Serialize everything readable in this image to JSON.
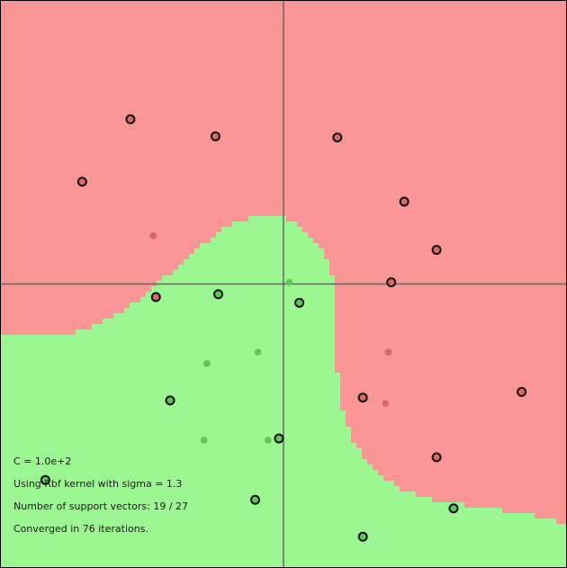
{
  "colors": {
    "positive_region": "#9cf793",
    "negative_region": "#fb9697",
    "positive_point": "#63c45c",
    "negative_point": "#d9676a",
    "support_stroke": "#111111",
    "axis": "#666666",
    "border": "#000000"
  },
  "info": {
    "c_line": "C = 1.0e+2",
    "kernel_line": "Using Rbf kernel with sigma = 1.3",
    "sv_line": "Number of support vectors: 19 / 27",
    "iter_line": "Converged in 76 iterations."
  },
  "chart_data": {
    "type": "scatter",
    "title": "",
    "xlabel": "",
    "ylabel": "",
    "xlim": [
      -5,
      5
    ],
    "ylim": [
      -5,
      5
    ],
    "grid": false,
    "series": [
      {
        "class": "negative",
        "points": [
          {
            "x": -2.7,
            "y": 2.9,
            "sv": true
          },
          {
            "x": -1.2,
            "y": 2.6,
            "sv": true
          },
          {
            "x": 0.95,
            "y": 2.58,
            "sv": true
          },
          {
            "x": -3.55,
            "y": 1.8,
            "sv": true
          },
          {
            "x": 2.13,
            "y": 1.45,
            "sv": true
          },
          {
            "x": 2.7,
            "y": 0.6,
            "sv": true
          },
          {
            "x": 1.9,
            "y": 0.03,
            "sv": true
          },
          {
            "x": -2.25,
            "y": -0.23,
            "sv": true
          },
          {
            "x": -2.3,
            "y": 0.85,
            "sv": false
          },
          {
            "x": 1.85,
            "y": -1.2,
            "sv": false
          },
          {
            "x": 1.4,
            "y": -2.0,
            "sv": true
          },
          {
            "x": 1.8,
            "y": -2.1,
            "sv": false
          },
          {
            "x": 4.2,
            "y": -1.9,
            "sv": true
          },
          {
            "x": 2.7,
            "y": -3.05,
            "sv": true
          }
        ]
      },
      {
        "class": "positive",
        "points": [
          {
            "x": 0.1,
            "y": 0.03,
            "sv": false
          },
          {
            "x": -1.15,
            "y": -0.18,
            "sv": true
          },
          {
            "x": 0.28,
            "y": -0.33,
            "sv": true
          },
          {
            "x": -0.45,
            "y": -1.2,
            "sv": false
          },
          {
            "x": -1.35,
            "y": -1.4,
            "sv": false
          },
          {
            "x": -2.0,
            "y": -2.05,
            "sv": true
          },
          {
            "x": -1.4,
            "y": -2.75,
            "sv": false
          },
          {
            "x": -0.27,
            "y": -2.75,
            "sv": false
          },
          {
            "x": -0.08,
            "y": -2.72,
            "sv": true
          },
          {
            "x": -0.5,
            "y": -3.8,
            "sv": true
          },
          {
            "x": -4.2,
            "y": -3.45,
            "sv": true
          },
          {
            "x": 3.0,
            "y": -3.95,
            "sv": true
          },
          {
            "x": 1.4,
            "y": -4.45,
            "sv": true
          }
        ]
      }
    ]
  }
}
